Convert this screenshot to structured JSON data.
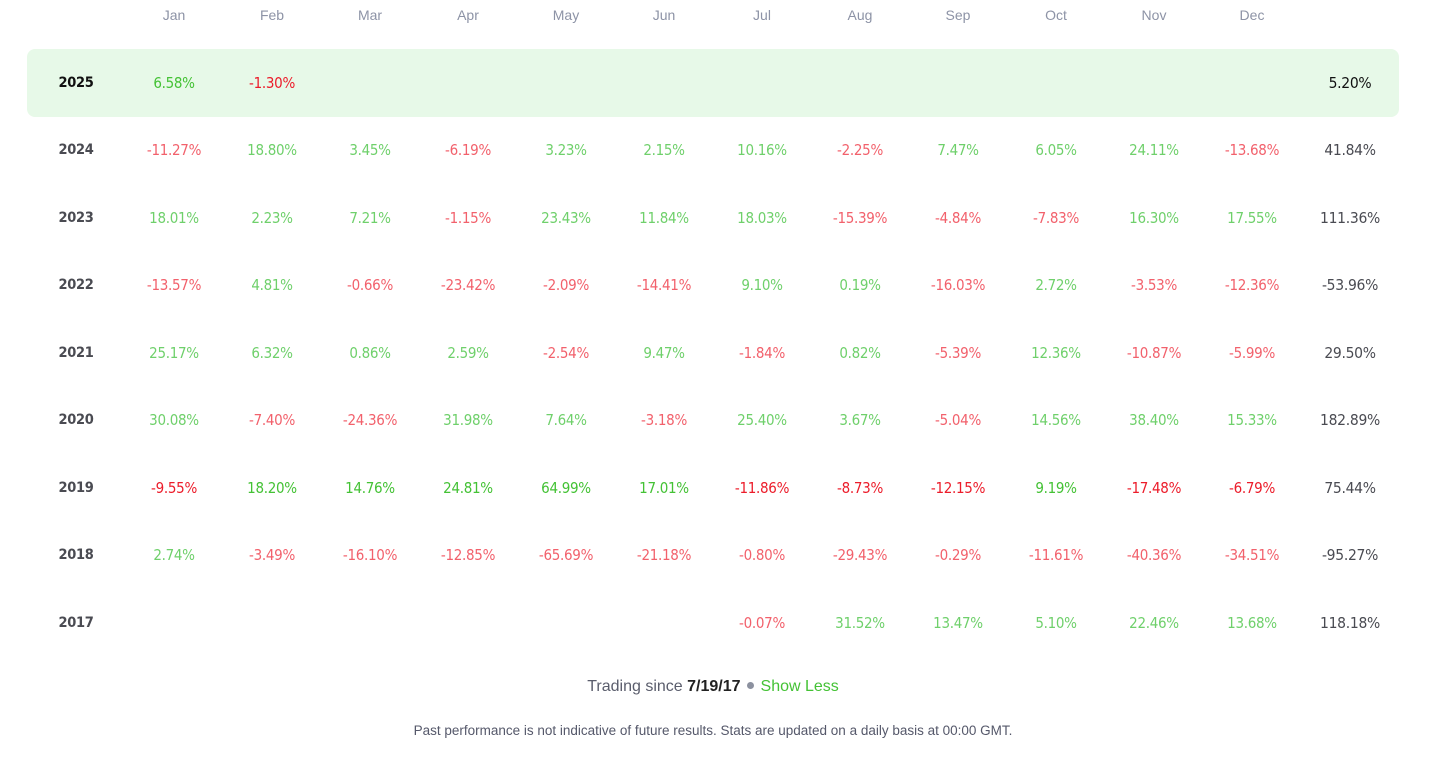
{
  "months": [
    "Jan",
    "Feb",
    "Mar",
    "Apr",
    "May",
    "Jun",
    "Jul",
    "Aug",
    "Sep",
    "Oct",
    "Nov",
    "Dec"
  ],
  "rows": [
    {
      "year": "2025",
      "values": [
        "6.58%",
        "-1.30%",
        "",
        "",
        "",
        "",
        "",
        "",
        "",
        "",
        "",
        ""
      ],
      "total": "5.20%",
      "highlight": true,
      "strong": true
    },
    {
      "year": "2024",
      "values": [
        "-11.27%",
        "18.80%",
        "3.45%",
        "-6.19%",
        "3.23%",
        "2.15%",
        "10.16%",
        "-2.25%",
        "7.47%",
        "6.05%",
        "24.11%",
        "-13.68%"
      ],
      "total": "41.84%"
    },
    {
      "year": "2023",
      "values": [
        "18.01%",
        "2.23%",
        "7.21%",
        "-1.15%",
        "23.43%",
        "11.84%",
        "18.03%",
        "-15.39%",
        "-4.84%",
        "-7.83%",
        "16.30%",
        "17.55%"
      ],
      "total": "111.36%"
    },
    {
      "year": "2022",
      "values": [
        "-13.57%",
        "4.81%",
        "-0.66%",
        "-23.42%",
        "-2.09%",
        "-14.41%",
        "9.10%",
        "0.19%",
        "-16.03%",
        "2.72%",
        "-3.53%",
        "-12.36%"
      ],
      "total": "-53.96%"
    },
    {
      "year": "2021",
      "values": [
        "25.17%",
        "6.32%",
        "0.86%",
        "2.59%",
        "-2.54%",
        "9.47%",
        "-1.84%",
        "0.82%",
        "-5.39%",
        "12.36%",
        "-10.87%",
        "-5.99%"
      ],
      "total": "29.50%"
    },
    {
      "year": "2020",
      "values": [
        "30.08%",
        "-7.40%",
        "-24.36%",
        "31.98%",
        "7.64%",
        "-3.18%",
        "25.40%",
        "3.67%",
        "-5.04%",
        "14.56%",
        "38.40%",
        "15.33%"
      ],
      "total": "182.89%"
    },
    {
      "year": "2019",
      "values": [
        "-9.55%",
        "18.20%",
        "14.76%",
        "24.81%",
        "64.99%",
        "17.01%",
        "-11.86%",
        "-8.73%",
        "-12.15%",
        "9.19%",
        "-17.48%",
        "-6.79%"
      ],
      "total": "75.44%",
      "strong": true
    },
    {
      "year": "2018",
      "values": [
        "2.74%",
        "-3.49%",
        "-16.10%",
        "-12.85%",
        "-65.69%",
        "-21.18%",
        "-0.80%",
        "-29.43%",
        "-0.29%",
        "-11.61%",
        "-40.36%",
        "-34.51%"
      ],
      "total": "-95.27%"
    },
    {
      "year": "2017",
      "values": [
        "",
        "",
        "",
        "",
        "",
        "",
        "-0.07%",
        "31.52%",
        "13.47%",
        "5.10%",
        "22.46%",
        "13.68%"
      ],
      "total": "118.18%"
    }
  ],
  "footer": {
    "trading_since_label": "Trading since",
    "trading_since_date": "7/19/17",
    "show_less": "Show Less",
    "disclaimer": "Past performance is not indicative of future results. Stats are updated on a daily basis at 00:00 GMT."
  },
  "colors": {
    "positive": "#6fd06b",
    "negative": "#f2616c",
    "highlight_bg": "#e7f9e8"
  }
}
